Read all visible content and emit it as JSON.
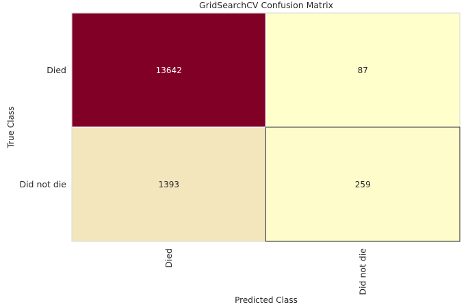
{
  "chart_data": {
    "type": "heatmap",
    "title": "GridSearchCV Confusion Matrix",
    "xlabel": "Predicted Class",
    "ylabel": "True Class",
    "x_categories": [
      "Died",
      "Did not die"
    ],
    "y_categories": [
      "Died",
      "Did not die"
    ],
    "values": [
      [
        13642,
        87
      ],
      [
        1393,
        259
      ]
    ],
    "colorscale": {
      "low": "#ffffcc",
      "high": "#800026"
    },
    "cell_text_colors": {
      "on_dark": "#ffffff",
      "on_light": "#262626"
    }
  }
}
